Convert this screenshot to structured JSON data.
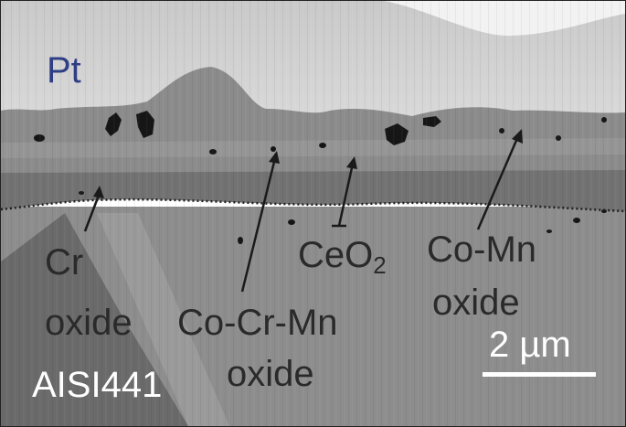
{
  "micrograph": {
    "labels": {
      "pt": "Pt",
      "cr_oxide_line1": "Cr",
      "cr_oxide_line2": "oxide",
      "cocrmn_line1": "Co-Cr-Mn",
      "cocrmn_line2": "oxide",
      "ceo2_base": "CeO",
      "ceo2_sub": "2",
      "comn_line1": "Co-Mn",
      "comn_line2": "oxide",
      "substrate": "AISI441"
    },
    "scale_bar": {
      "label": "2 µm"
    },
    "colors": {
      "pt_label": "#2f3f86",
      "pt_layer": "#d6d6d6",
      "spinel_layer": "#8a8a8a",
      "chromia_layer": "#6e6e6e",
      "substrate": "#8e8e8e",
      "pores": "#1a1a1a",
      "label_text": "#2a2a2a",
      "scale_bar": "#ffffff"
    }
  }
}
